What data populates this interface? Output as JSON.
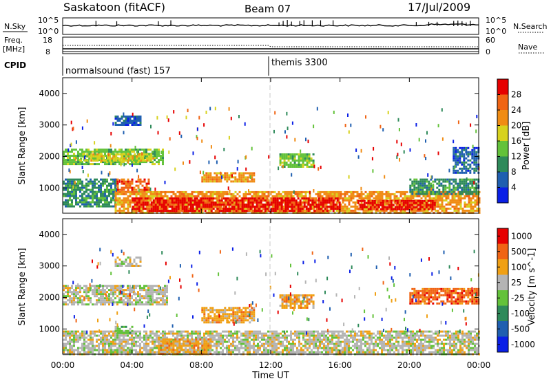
{
  "header": {
    "station": "Saskatoon (fitACF)",
    "beam": "Beam 07",
    "date": "17/Jul/2009"
  },
  "nsky_panel": {
    "left_label": "N.Sky",
    "right_label": "N.Search",
    "tick_top": "10^5",
    "tick_bottom": "10^0"
  },
  "freq_panel": {
    "left_label_line1": "Freq.",
    "left_label_line2": "[MHz]",
    "left_tick_top": "18",
    "left_tick_bottom": "8",
    "right_tick_top": "60",
    "right_tick_bottom": "0",
    "right_label": "Nave"
  },
  "cpid_panel": {
    "label": "CPID",
    "mode1": "normalsound (fast) 157",
    "mode2": "themis 3300"
  },
  "chart_data": [
    {
      "type": "heatmap",
      "name": "power",
      "ylabel": "Slant Range [km]",
      "yticks": [
        "1000",
        "2000",
        "3000",
        "4000"
      ],
      "ylim": [
        200,
        4500
      ],
      "xlim": [
        0,
        24
      ],
      "colorbar": {
        "label": "Power [dB]",
        "tick_labels": [
          "4",
          "8",
          "12",
          "16",
          "20",
          "24",
          "28"
        ],
        "colors": [
          "#0a1fe6",
          "#1f5fb0",
          "#2e8a5a",
          "#63c23a",
          "#d7d21e",
          "#f08c14",
          "#f06414",
          "#e60000"
        ]
      },
      "regions": [
        {
          "t": [
            0,
            5.8
          ],
          "r": [
            1750,
            2250
          ],
          "level": 3
        },
        {
          "t": [
            1.0,
            5.2
          ],
          "r": [
            1850,
            2100
          ],
          "level": 4
        },
        {
          "t": [
            3.0,
            5.0
          ],
          "r": [
            850,
            1300
          ],
          "level": 6
        },
        {
          "t": [
            0,
            3.0
          ],
          "r": [
            400,
            1300
          ],
          "level": 2
        },
        {
          "t": [
            3.0,
            24
          ],
          "r": [
            200,
            900
          ],
          "level": 5
        },
        {
          "t": [
            4.0,
            16.0
          ],
          "r": [
            250,
            700
          ],
          "level": 7
        },
        {
          "t": [
            17.0,
            21.5
          ],
          "r": [
            330,
            620
          ],
          "level": 7
        },
        {
          "t": [
            8.0,
            11.0
          ],
          "r": [
            1200,
            1500
          ],
          "level": 5
        },
        {
          "t": [
            12.5,
            14.5
          ],
          "r": [
            1700,
            2100
          ],
          "level": 3
        },
        {
          "t": [
            3.0,
            4.5
          ],
          "r": [
            3000,
            3300
          ],
          "level": 1
        },
        {
          "t": [
            20.0,
            24
          ],
          "r": [
            800,
            1300
          ],
          "level": 2
        },
        {
          "t": [
            22.5,
            24
          ],
          "r": [
            1500,
            2300
          ],
          "level": 1
        }
      ]
    },
    {
      "type": "heatmap",
      "name": "velocity",
      "ylabel": "Slant Range [km]",
      "xlabel": "Time UT",
      "yticks": [
        "1000",
        "2000",
        "3000",
        "4000"
      ],
      "ylim": [
        200,
        4500
      ],
      "xlim": [
        0,
        24
      ],
      "xtick_labels": [
        "00:00",
        "04:00",
        "08:00",
        "12:00",
        "16:00",
        "20:00",
        "00:00"
      ],
      "colorbar": {
        "label": "Velocity [m s^-1]",
        "tick_labels": [
          "1000",
          "500",
          "100",
          "25",
          "-25",
          "-100",
          "-500",
          "-1000"
        ],
        "colors": [
          "#0a1fe6",
          "#1f5fb0",
          "#2e8a5a",
          "#63c23a",
          "#b4b4b4",
          "#f0a014",
          "#f06414",
          "#e60000"
        ]
      },
      "regions": [
        {
          "t": [
            0,
            6.0
          ],
          "r": [
            1800,
            2400
          ],
          "level": 4
        },
        {
          "t": [
            0,
            24
          ],
          "r": [
            200,
            950
          ],
          "level": 4
        },
        {
          "t": [
            5.5,
            8.5
          ],
          "r": [
            200,
            700
          ],
          "level": 5
        },
        {
          "t": [
            8.0,
            11.0
          ],
          "r": [
            1200,
            1700
          ],
          "level": 5
        },
        {
          "t": [
            12.5,
            14.5
          ],
          "r": [
            1700,
            2100
          ],
          "level": 5
        },
        {
          "t": [
            3.0,
            4.0
          ],
          "r": [
            900,
            1100
          ],
          "level": 3
        },
        {
          "t": [
            20.0,
            24
          ],
          "r": [
            1800,
            2300
          ],
          "level": 6
        },
        {
          "t": [
            3.0,
            4.5
          ],
          "r": [
            3000,
            3300
          ],
          "level": 4
        }
      ]
    }
  ]
}
